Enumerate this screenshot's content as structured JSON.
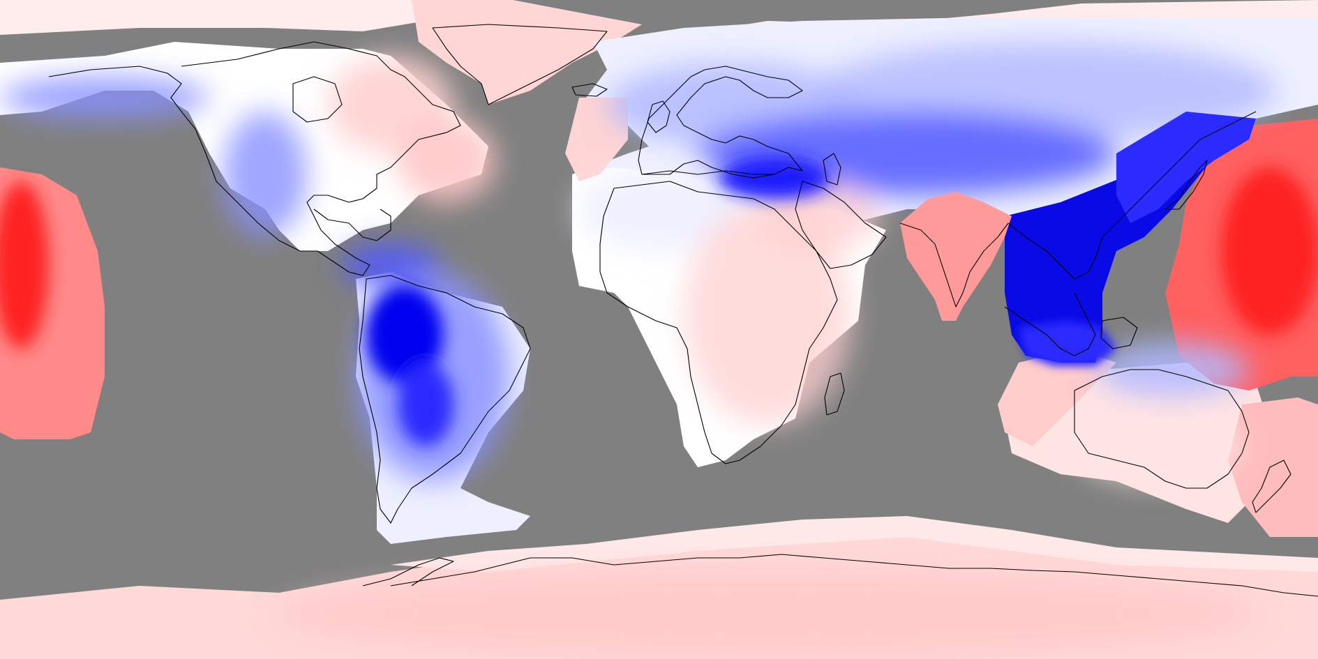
{
  "map": {
    "projection": "equirectangular",
    "extent": {
      "lon": [
        -180,
        180
      ],
      "lat": [
        -90,
        90
      ]
    },
    "colors": {
      "missing": "#808080",
      "neutral": "#ffffff",
      "coastline": "#000000",
      "positive_scale": [
        "#ffecec",
        "#ffd0d0",
        "#ffb0b0",
        "#ff8888",
        "#ff5555",
        "#ff2020"
      ],
      "negative_scale": [
        "#eef0ff",
        "#d4d8ff",
        "#b0b8ff",
        "#8890ff",
        "#5058ff",
        "#1a1aff",
        "#0000e0"
      ]
    },
    "regions": [
      {
        "name": "arctic-ocean-cap",
        "sign": "positive",
        "level": 0
      },
      {
        "name": "alaska-arctic-band",
        "sign": "negative",
        "level": 2
      },
      {
        "name": "north-america",
        "sign": "neutral",
        "level": 0
      },
      {
        "name": "western-us",
        "sign": "negative",
        "level": 2
      },
      {
        "name": "canada-east",
        "sign": "positive",
        "level": 1
      },
      {
        "name": "greenland",
        "sign": "positive",
        "level": 1
      },
      {
        "name": "north-atlantic-east-coast",
        "sign": "positive",
        "level": 1
      },
      {
        "name": "central-america-caribbean",
        "sign": "negative",
        "level": 4
      },
      {
        "name": "south-america",
        "sign": "negative",
        "level": 3
      },
      {
        "name": "south-america-andes",
        "sign": "negative",
        "level": 6
      },
      {
        "name": "patagonia",
        "sign": "negative",
        "level": 3
      },
      {
        "name": "europe",
        "sign": "negative",
        "level": 2
      },
      {
        "name": "mediterranean-turkey",
        "sign": "negative",
        "level": 5
      },
      {
        "name": "siberia",
        "sign": "negative",
        "level": 1
      },
      {
        "name": "central-asia",
        "sign": "negative",
        "level": 4
      },
      {
        "name": "china-southeast-asia",
        "sign": "negative",
        "level": 6
      },
      {
        "name": "east-asia-coast",
        "sign": "negative",
        "level": 5
      },
      {
        "name": "north-africa",
        "sign": "neutral",
        "level": 0
      },
      {
        "name": "sub-saharan-africa",
        "sign": "positive",
        "level": 1
      },
      {
        "name": "arabia",
        "sign": "positive",
        "level": 1
      },
      {
        "name": "india",
        "sign": "positive",
        "level": 2
      },
      {
        "name": "maritime-continent",
        "sign": "negative",
        "level": 3
      },
      {
        "name": "australia",
        "sign": "positive",
        "level": 1
      },
      {
        "name": "indian-ocean-west-australia",
        "sign": "positive",
        "level": 1
      },
      {
        "name": "new-zealand-tasman",
        "sign": "positive",
        "level": 2
      },
      {
        "name": "north-west-pacific",
        "sign": "positive",
        "level": 5
      },
      {
        "name": "central-pacific",
        "sign": "positive",
        "level": 5
      },
      {
        "name": "antarctica",
        "sign": "positive",
        "level": 1
      },
      {
        "name": "southern-ocean-ring",
        "sign": "positive",
        "level": 2
      }
    ]
  }
}
